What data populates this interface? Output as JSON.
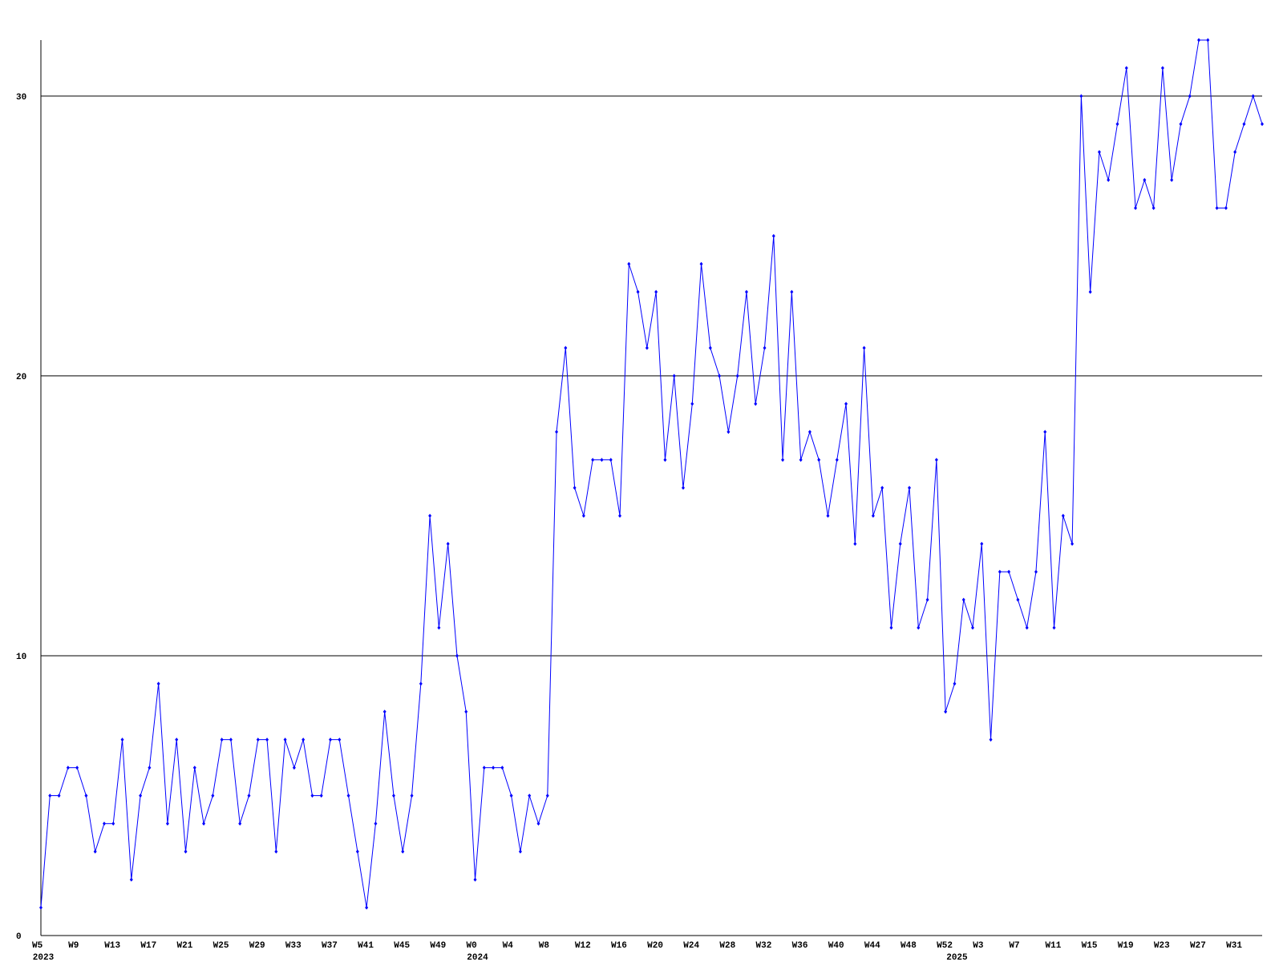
{
  "chart_data": {
    "type": "line",
    "categories": [
      "W5",
      null,
      null,
      null,
      "W9",
      null,
      null,
      null,
      "W13",
      null,
      null,
      null,
      "W17",
      null,
      null,
      null,
      "W21",
      null,
      null,
      null,
      "W25",
      null,
      null,
      null,
      "W29",
      null,
      null,
      null,
      "W33",
      null,
      null,
      null,
      "W37",
      null,
      null,
      null,
      "W41",
      null,
      null,
      null,
      "W45",
      null,
      null,
      null,
      "W49",
      null,
      null,
      null,
      "W0",
      null,
      null,
      null,
      "W4",
      null,
      null,
      null,
      "W8",
      null,
      null,
      null,
      "W12",
      null,
      null,
      null,
      "W16",
      null,
      null,
      null,
      "W20",
      null,
      null,
      null,
      "W24",
      null,
      null,
      null,
      "W28",
      null,
      null,
      null,
      "W32",
      null,
      null,
      null,
      "W36",
      null,
      null,
      null,
      "W40",
      null,
      null,
      null,
      "W44",
      null,
      null,
      null,
      "W48",
      null,
      null,
      null,
      "W52",
      null,
      null,
      null,
      "W3",
      null,
      null,
      null,
      "W7",
      null,
      null,
      null,
      "W11",
      null,
      null,
      null,
      "W15",
      null,
      null,
      null,
      "W19",
      null,
      null,
      null,
      "W23",
      null,
      null,
      null,
      "W27",
      null,
      null,
      null,
      "W31",
      null,
      null,
      null
    ],
    "year_labels": [
      {
        "index": 0,
        "label": "2023"
      },
      {
        "index": 48,
        "label": "2024"
      },
      {
        "index": 101,
        "label": "2025"
      }
    ],
    "series": [
      {
        "color": "#0000ff",
        "values": [
          1,
          5,
          5,
          6,
          6,
          5,
          3,
          4,
          4,
          7,
          2,
          5,
          6,
          9,
          4,
          7,
          3,
          6,
          4,
          5,
          7,
          7,
          4,
          5,
          7,
          7,
          3,
          7,
          6,
          7,
          5,
          5,
          7,
          7,
          5,
          3,
          1,
          4,
          8,
          5,
          3,
          5,
          9,
          15,
          11,
          14,
          10,
          8,
          2,
          6,
          6,
          6,
          5,
          3,
          5,
          4,
          5,
          18,
          21,
          16,
          15,
          17,
          17,
          17,
          15,
          24,
          23,
          21,
          23,
          17,
          20,
          16,
          19,
          24,
          21,
          20,
          18,
          20,
          23,
          19,
          21,
          25,
          17,
          23,
          17,
          18,
          17,
          15,
          17,
          19,
          14,
          21,
          15,
          16,
          11,
          14,
          16,
          11,
          12,
          17,
          8,
          9,
          12,
          11,
          14,
          7,
          13,
          13,
          12,
          11,
          13,
          18,
          11,
          15,
          14,
          30,
          23,
          28,
          27,
          29,
          31,
          26,
          27,
          26,
          31,
          27,
          29,
          30,
          32,
          32,
          26,
          26,
          28,
          29,
          30,
          29
        ]
      }
    ],
    "ylim": [
      0,
      32
    ],
    "yticks": [
      0,
      10,
      20,
      30
    ],
    "grid": true
  }
}
